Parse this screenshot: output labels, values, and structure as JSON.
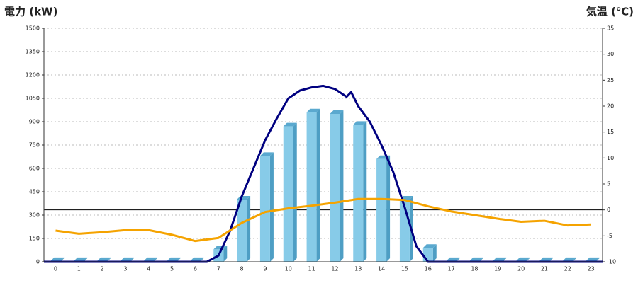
{
  "chart_data": {
    "type": "combo",
    "y_title": "電力 (kW)",
    "y2_title": "気温 (℃)",
    "categories": [
      "0",
      "1",
      "2",
      "3",
      "4",
      "5",
      "6",
      "7",
      "8",
      "9",
      "10",
      "11",
      "12",
      "13",
      "14",
      "15",
      "16",
      "17",
      "18",
      "19",
      "20",
      "21",
      "22",
      "23"
    ],
    "ylim": [
      0,
      1500
    ],
    "yticks": [
      0,
      150,
      300,
      450,
      600,
      750,
      900,
      1050,
      1200,
      1350,
      1500
    ],
    "y2lim": [
      -10,
      35
    ],
    "y2ticks": [
      -10,
      -5,
      0,
      5,
      10,
      15,
      20,
      25,
      30,
      35
    ],
    "grid": true,
    "y_title_color": "#1e6fb8",
    "y2_title_color": "#f08a1c",
    "series": [
      {
        "type": "bar",
        "color": "#87cbe8",
        "values": [
          5,
          5,
          5,
          5,
          5,
          5,
          5,
          80,
          400,
          680,
          870,
          960,
          950,
          880,
          660,
          400,
          90,
          5,
          5,
          5,
          5,
          5,
          5,
          5
        ]
      },
      {
        "type": "line",
        "color": "#000080",
        "x": [
          -0.5,
          6.5,
          7,
          7.5,
          8,
          8.5,
          9,
          9.5,
          10,
          10.5,
          11,
          11.5,
          12,
          12.5,
          12.7,
          13,
          13.5,
          14,
          14.5,
          15,
          15.5,
          16,
          16.5,
          23.5
        ],
        "values": [
          0,
          0,
          40,
          200,
          420,
          600,
          780,
          920,
          1050,
          1100,
          1120,
          1130,
          1110,
          1060,
          1090,
          1000,
          900,
          750,
          580,
          350,
          100,
          0,
          0,
          0
        ]
      },
      {
        "type": "line",
        "axis": "y2",
        "color": "#f5a300",
        "values": [
          -4,
          -4.6,
          -4.3,
          -3.9,
          -3.9,
          -4.8,
          -6,
          -5.4,
          -2.5,
          -0.4,
          0.3,
          0.8,
          1.4,
          2.1,
          2.1,
          1.9,
          0.7,
          -0.3,
          -1,
          -1.7,
          -2.3,
          -2.1,
          -3,
          -2.8
        ]
      }
    ]
  }
}
